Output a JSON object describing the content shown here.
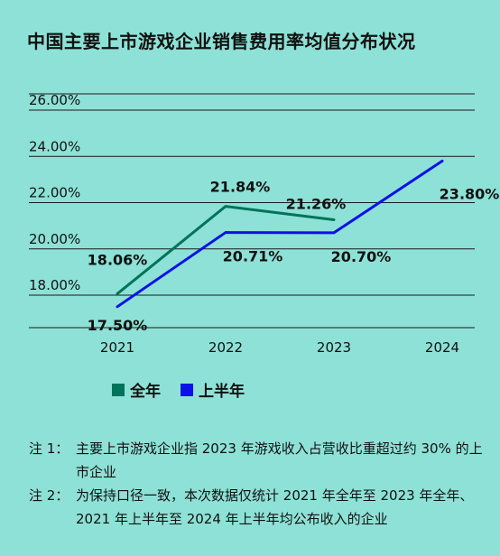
{
  "title": "中国主要上市游戏企业销售费用率均值分布状况",
  "chart_data": {
    "type": "line",
    "categories": [
      "2021",
      "2022",
      "2023",
      "2024"
    ],
    "series": [
      {
        "name": "全年",
        "color": "#00735a",
        "values": [
          18.06,
          21.84,
          21.26,
          null
        ],
        "labels": [
          "18.06%",
          "21.84%",
          "21.26%",
          ""
        ]
      },
      {
        "name": "上半年",
        "color": "#0a12e6",
        "values": [
          17.5,
          20.71,
          20.7,
          23.8
        ],
        "labels": [
          "17.50%",
          "20.71%",
          "20.70%",
          "23.80%"
        ]
      }
    ],
    "y_ticks": [
      "18.00%",
      "20.00%",
      "22.00%",
      "24.00%",
      "26.00%"
    ],
    "y_tick_values": [
      18,
      20,
      22,
      24,
      26
    ],
    "ylim": [
      16,
      27
    ],
    "grid": true,
    "legend_position": "bottom"
  },
  "notes": [
    {
      "label": "注 1：",
      "text": "主要上市游戏企业指 2023 年游戏收入占营收比重超过约 30% 的上市企业"
    },
    {
      "label": "注 2：",
      "text": "为保持口径一致，本次数据仅统计 2021 年全年至 2023 年全年、2021 年上半年至 2024 年上半年均公布收入的企业"
    }
  ]
}
